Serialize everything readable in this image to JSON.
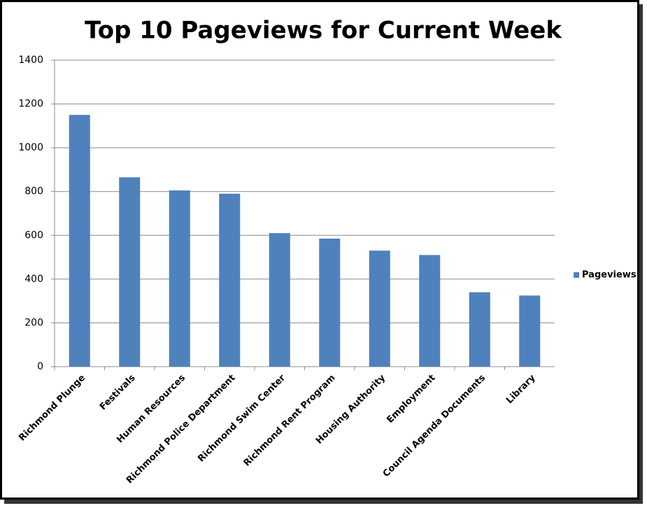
{
  "chart_data": {
    "type": "bar",
    "title": "Top 10 Pageviews for Current Week",
    "categories": [
      "Richmond Plunge",
      "Festivals",
      "Human Resources",
      "Richmond Police Department",
      "Richmond Swim Center",
      "Richmond Rent Program",
      "Housing Authority",
      "Employment",
      "Council Agenda Documents",
      "Library"
    ],
    "series": [
      {
        "name": "Pageviews",
        "color": "#4f81bd",
        "values": [
          1150,
          865,
          805,
          790,
          610,
          585,
          530,
          510,
          340,
          325
        ]
      }
    ],
    "ylim": [
      0,
      1400
    ],
    "yticks": [
      0,
      200,
      400,
      600,
      800,
      1000,
      1200,
      1400
    ],
    "grid": true,
    "legend": "right"
  }
}
